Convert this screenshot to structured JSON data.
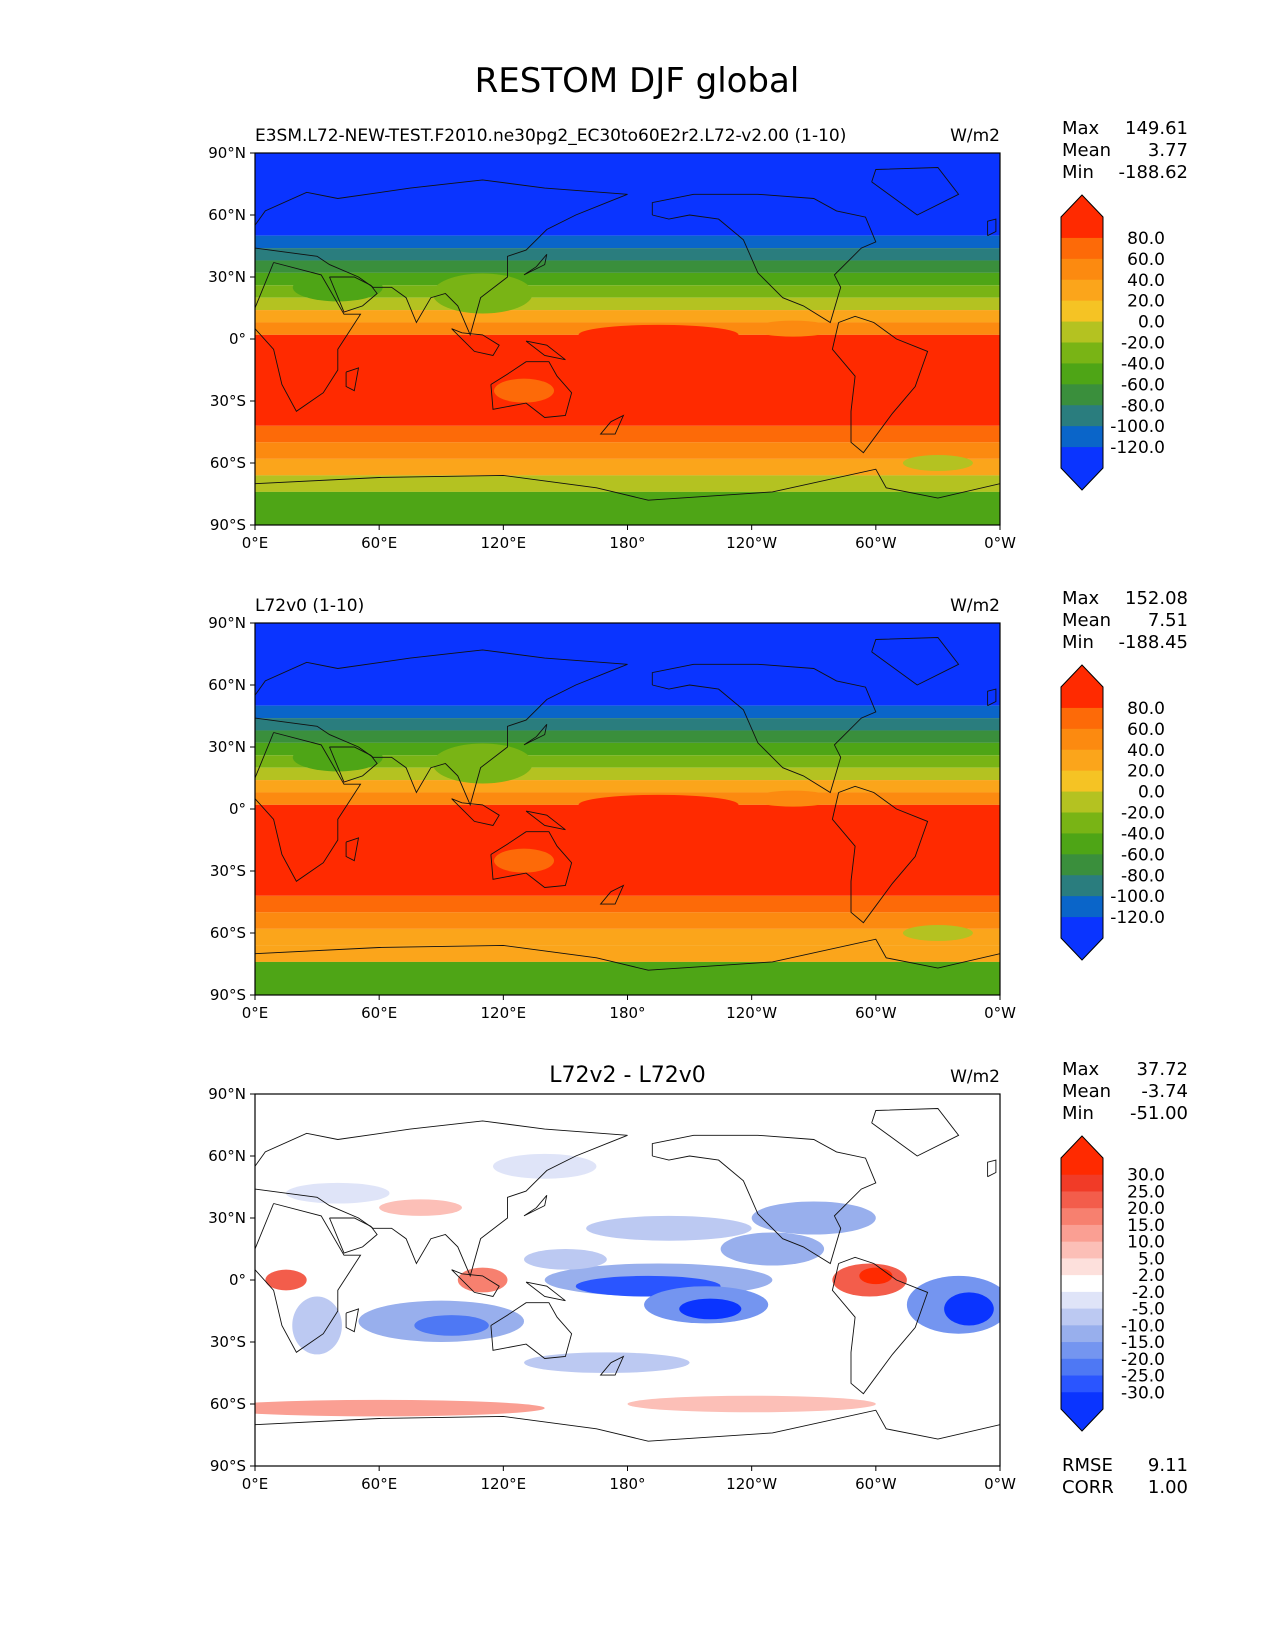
{
  "title": "RESTOM DJF global",
  "x_ticks": [
    "0°E",
    "60°E",
    "120°E",
    "180°",
    "120°W",
    "60°W",
    "0°W"
  ],
  "y_ticks": [
    "90°N",
    "60°N",
    "30°N",
    "0°",
    "30°S",
    "60°S",
    "90°S"
  ],
  "colors": {
    "abs_levels": [
      "#0a34ff",
      "#0a65c9",
      "#2a7d7e",
      "#3a8f3c",
      "#4ea516",
      "#79b415",
      "#b4c221",
      "#f5c324",
      "#fba51b",
      "#fc8a10",
      "#fd6a08",
      "#ff2a00"
    ],
    "diff_levels": [
      "#0a34ff",
      "#2a55ff",
      "#4e78f4",
      "#7495f0",
      "#98afed",
      "#bcc9f2",
      "#dfe4f8",
      "#ffffff",
      "#fde0dc",
      "#fcbfb7",
      "#fa9f93",
      "#f7806f",
      "#f35d4b",
      "#f13b27",
      "#ff2a00"
    ]
  },
  "chart_data": [
    {
      "type": "heatmap",
      "title": "",
      "left_title": "E3SM.L72-NEW-TEST.F2010.ne30pg2_EC30to60E2r2.L72-v2.00 (1-10)",
      "units": "W/m2",
      "xlim": [
        0,
        360
      ],
      "ylim": [
        -90,
        90
      ],
      "stats": [
        {
          "label": "Max",
          "value": "149.61"
        },
        {
          "label": "Mean",
          "value": "3.77"
        },
        {
          "label": "Min",
          "value": "-188.62"
        }
      ],
      "colorbar_ticks": [
        "80.0",
        "60.0",
        "40.0",
        "20.0",
        "0.0",
        "-20.0",
        "-40.0",
        "-60.0",
        "-80.0",
        "-100.0",
        "-120.0"
      ],
      "extra_stats": []
    },
    {
      "type": "heatmap",
      "title": "",
      "left_title": "L72v0 (1-10)",
      "units": "W/m2",
      "xlim": [
        0,
        360
      ],
      "ylim": [
        -90,
        90
      ],
      "stats": [
        {
          "label": "Max",
          "value": "152.08"
        },
        {
          "label": "Mean",
          "value": "7.51"
        },
        {
          "label": "Min",
          "value": "-188.45"
        }
      ],
      "colorbar_ticks": [
        "80.0",
        "60.0",
        "40.0",
        "20.0",
        "0.0",
        "-20.0",
        "-40.0",
        "-60.0",
        "-80.0",
        "-100.0",
        "-120.0"
      ],
      "extra_stats": []
    },
    {
      "type": "heatmap",
      "title": "L72v2 - L72v0",
      "left_title": "",
      "units": "W/m2",
      "xlim": [
        0,
        360
      ],
      "ylim": [
        -90,
        90
      ],
      "stats": [
        {
          "label": "Max",
          "value": "37.72"
        },
        {
          "label": "Mean",
          "value": "-3.74"
        },
        {
          "label": "Min",
          "value": "-51.00"
        }
      ],
      "colorbar_ticks": [
        "30.0",
        "25.0",
        "20.0",
        "15.0",
        "10.0",
        "5.0",
        "2.0",
        "-2.0",
        "-5.0",
        "-10.0",
        "-15.0",
        "-20.0",
        "-25.0",
        "-30.0"
      ],
      "extra_stats": [
        {
          "label": "RMSE",
          "value": "9.11"
        },
        {
          "label": "CORR",
          "value": "1.00"
        }
      ]
    }
  ]
}
